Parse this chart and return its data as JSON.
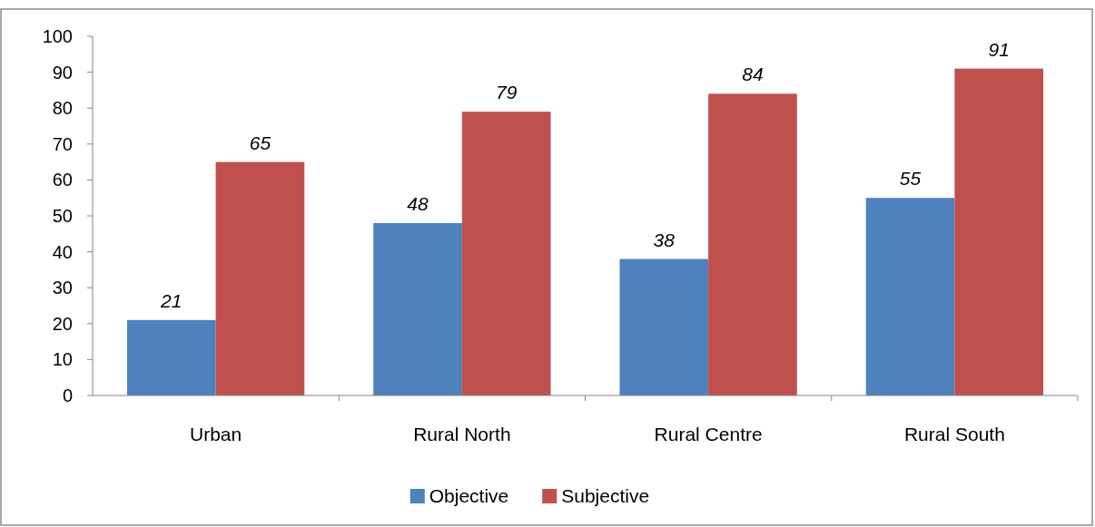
{
  "chart_data": {
    "type": "bar",
    "categories": [
      "Urban",
      "Rural North",
      "Rural Centre",
      "Rural South"
    ],
    "series": [
      {
        "name": "Objective",
        "color": "#4f81bd",
        "values": [
          21,
          48,
          38,
          55
        ]
      },
      {
        "name": "Subjective",
        "color": "#c0504d",
        "values": [
          65,
          79,
          84,
          91
        ]
      }
    ],
    "ylim": [
      0,
      100
    ],
    "yticks": [
      0,
      10,
      20,
      30,
      40,
      50,
      60,
      70,
      80,
      90,
      100
    ],
    "grid": false,
    "legend": "bottom",
    "data_labels": true
  }
}
